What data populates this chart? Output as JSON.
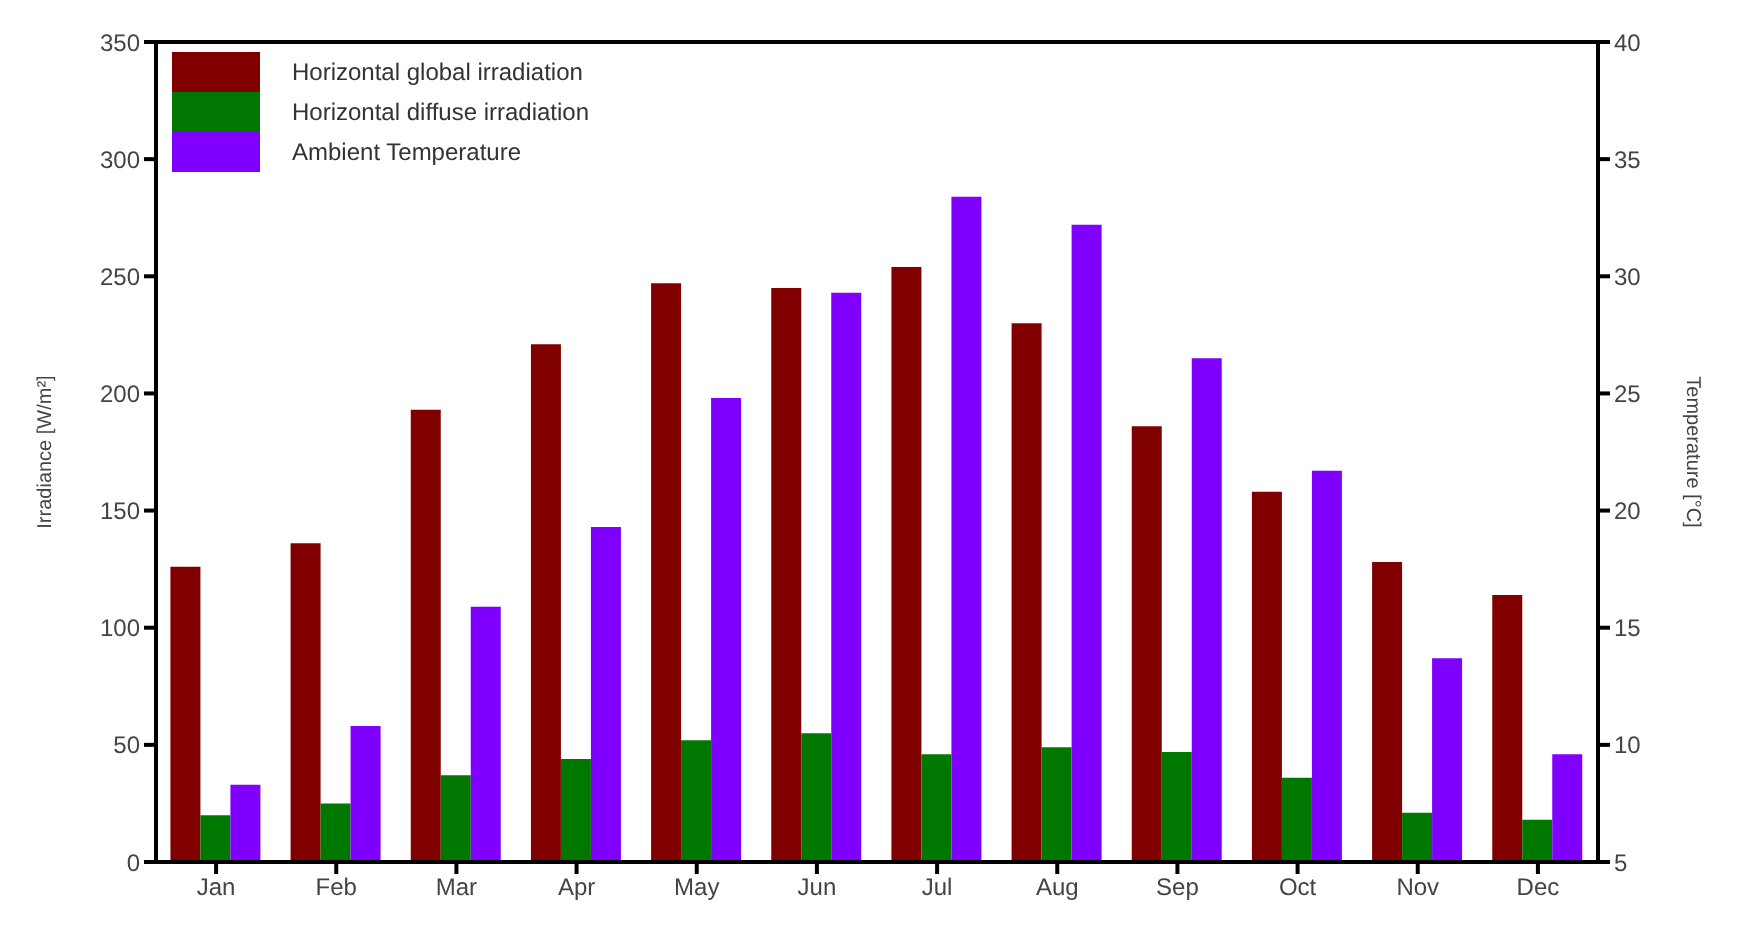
{
  "chart_data": {
    "type": "bar",
    "categories": [
      "Jan",
      "Feb",
      "Mar",
      "Apr",
      "May",
      "Jun",
      "Jul",
      "Aug",
      "Sep",
      "Oct",
      "Nov",
      "Dec"
    ],
    "series": [
      {
        "name": "Horizontal global irradiation",
        "color": "#800000",
        "values": [
          126,
          136,
          193,
          221,
          247,
          245,
          254,
          230,
          186,
          158,
          128,
          114
        ]
      },
      {
        "name": "Horizontal diffuse irradiation",
        "color": "#007800",
        "values": [
          20,
          25,
          37,
          44,
          52,
          55,
          46,
          49,
          47,
          36,
          21,
          18
        ]
      },
      {
        "name": "Ambient Temperature",
        "color": "#8000ff",
        "axis": "y2",
        "values": [
          8.3,
          10.8,
          15.9,
          19.3,
          24.8,
          29.3,
          33.4,
          32.2,
          26.5,
          21.7,
          13.7,
          9.6
        ]
      }
    ],
    "ylabel": "Irradiance [W/m²]",
    "y2label": "Temperature [°C]",
    "ylim": [
      0,
      350
    ],
    "yticks": [
      0,
      50,
      100,
      150,
      200,
      250,
      300,
      350
    ],
    "y2lim": [
      5,
      40
    ],
    "y2ticks": [
      5,
      10,
      15,
      20,
      25,
      30,
      35,
      40
    ],
    "legend": "top left",
    "grid": false
  }
}
